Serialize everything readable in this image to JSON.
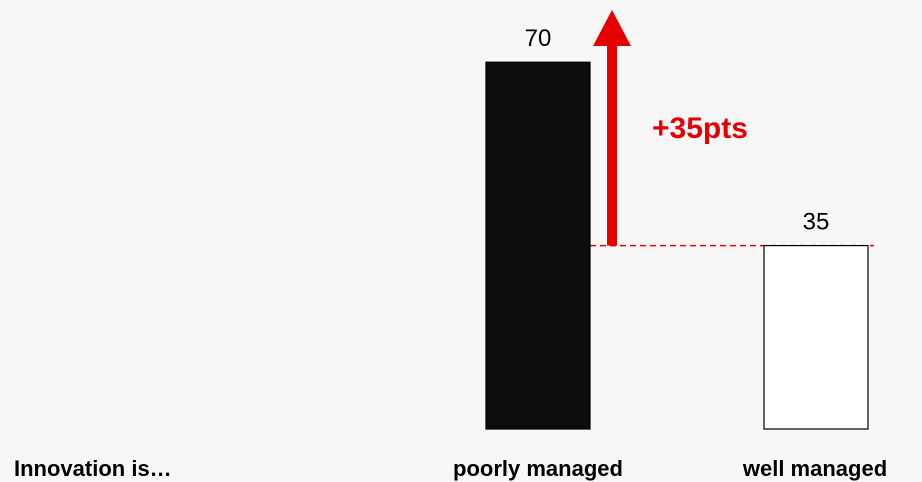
{
  "chart_data": {
    "type": "bar",
    "row_label": "Innovation is…",
    "categories": [
      "poorly managed",
      "well managed"
    ],
    "values": [
      70,
      35
    ],
    "bar_colors": [
      "#0d0d0d",
      "#ffffff"
    ],
    "annotation": {
      "text": "+35pts",
      "from_category": "well managed",
      "to_category": "poorly managed",
      "color": "#e60000"
    }
  }
}
